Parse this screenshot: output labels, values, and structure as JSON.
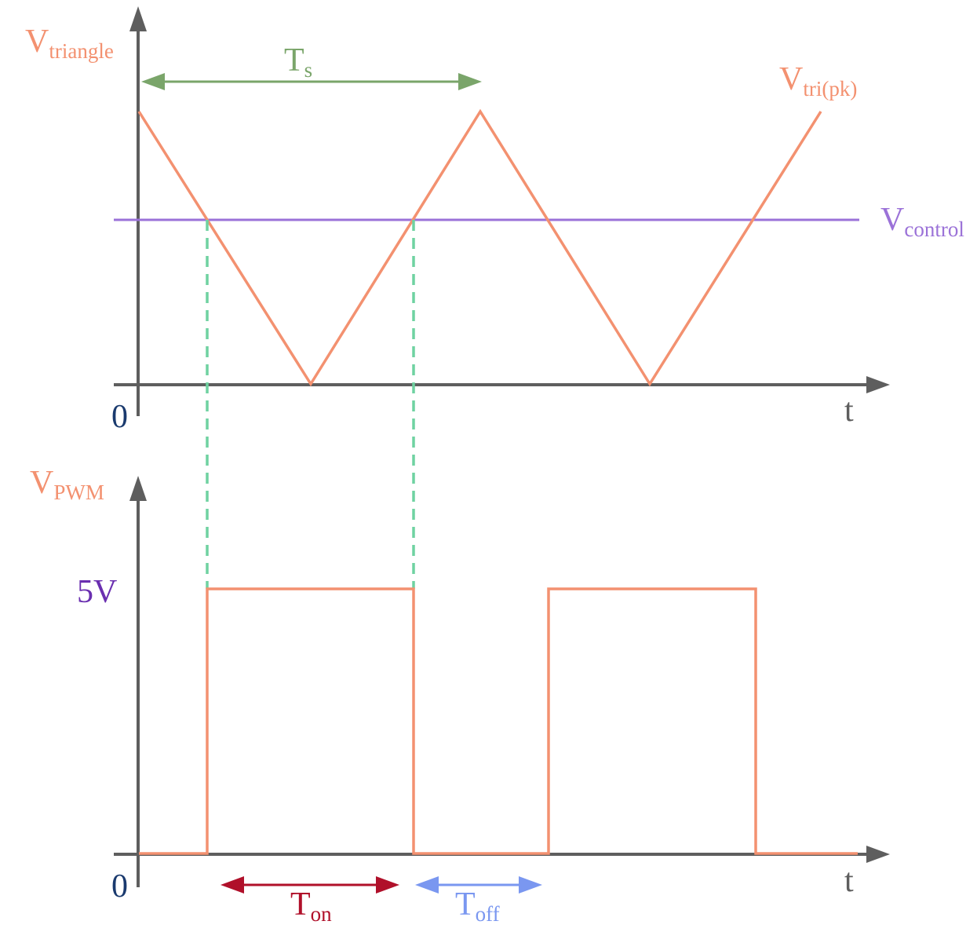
{
  "colors": {
    "axis": "#5e5e5e",
    "triangle": "#f39170",
    "control": "#9b72d8",
    "guide": "#6fd2a1",
    "period": "#7aa56a",
    "ton": "#b0102a",
    "toff": "#7a97f0",
    "origin": "#1a3a6e",
    "five_volt": "#6a2fb0"
  },
  "top_plot": {
    "y_label_main": "V",
    "y_label_sub": "triangle",
    "origin_label": "0",
    "x_label": "t",
    "period_label_main": "T",
    "period_label_sub": "s",
    "peak_label_main": "V",
    "peak_label_sub": "tri(pk)",
    "control_label_main": "V",
    "control_label_sub": "control"
  },
  "bottom_plot": {
    "y_label_main": "V",
    "y_label_sub": "PWM",
    "origin_label": "0",
    "x_label": "t",
    "level_label": "5V",
    "ton_label_main": "T",
    "ton_label_sub": "on",
    "toff_label_main": "T",
    "toff_label_sub": "off"
  }
}
